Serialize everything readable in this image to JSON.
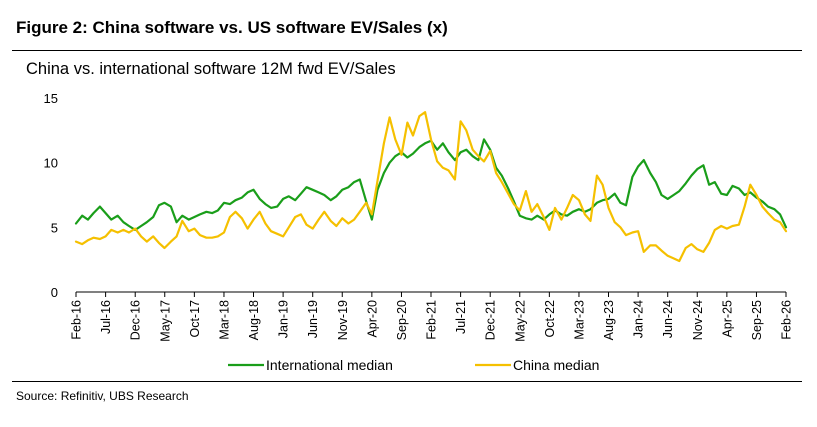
{
  "figure_title": "Figure 2: China software vs. US software EV/Sales (x)",
  "source": "Source: Refinitiv, UBS Research",
  "chart_data": {
    "type": "line",
    "title": "China vs. international software 12M fwd EV/Sales",
    "xlabel": "",
    "ylabel": "",
    "ylim": [
      0,
      15
    ],
    "yticks": [
      0,
      5,
      10,
      15
    ],
    "xlim": [
      2016.083,
      2026.083
    ],
    "xticks": [
      {
        "label": "Feb-16",
        "x": 2016.083
      },
      {
        "label": "Jul-16",
        "x": 2016.5
      },
      {
        "label": "Dec-16",
        "x": 2016.917
      },
      {
        "label": "May-17",
        "x": 2017.333
      },
      {
        "label": "Oct-17",
        "x": 2017.75
      },
      {
        "label": "Mar-18",
        "x": 2018.167
      },
      {
        "label": "Aug-18",
        "x": 2018.583
      },
      {
        "label": "Jan-19",
        "x": 2019.0
      },
      {
        "label": "Jun-19",
        "x": 2019.417
      },
      {
        "label": "Nov-19",
        "x": 2019.833
      },
      {
        "label": "Apr-20",
        "x": 2020.25
      },
      {
        "label": "Sep-20",
        "x": 2020.667
      },
      {
        "label": "Feb-21",
        "x": 2021.083
      },
      {
        "label": "Jul-21",
        "x": 2021.5
      },
      {
        "label": "Dec-21",
        "x": 2021.917
      },
      {
        "label": "May-22",
        "x": 2022.333
      },
      {
        "label": "Oct-22",
        "x": 2022.75
      },
      {
        "label": "Mar-23",
        "x": 2023.167
      },
      {
        "label": "Aug-23",
        "x": 2023.583
      },
      {
        "label": "Jan-24",
        "x": 2024.0
      },
      {
        "label": "Jun-24",
        "x": 2024.417
      },
      {
        "label": "Nov-24",
        "x": 2024.833
      },
      {
        "label": "Apr-25",
        "x": 2025.25
      },
      {
        "label": "Sep-25",
        "x": 2025.667
      },
      {
        "label": "Feb-26",
        "x": 2026.083
      }
    ],
    "legend_position": "bottom",
    "series": [
      {
        "name": "International median",
        "color": "#1a9e1a",
        "points": [
          [
            2016.083,
            5.3
          ],
          [
            2016.17,
            5.9
          ],
          [
            2016.25,
            5.6
          ],
          [
            2016.33,
            6.1
          ],
          [
            2016.42,
            6.6
          ],
          [
            2016.5,
            6.1
          ],
          [
            2016.58,
            5.6
          ],
          [
            2016.67,
            5.9
          ],
          [
            2016.75,
            5.4
          ],
          [
            2016.83,
            5.1
          ],
          [
            2016.917,
            4.8
          ],
          [
            2017.0,
            5.1
          ],
          [
            2017.08,
            5.4
          ],
          [
            2017.17,
            5.8
          ],
          [
            2017.25,
            6.7
          ],
          [
            2017.33,
            6.9
          ],
          [
            2017.42,
            6.6
          ],
          [
            2017.5,
            5.4
          ],
          [
            2017.58,
            5.9
          ],
          [
            2017.67,
            5.6
          ],
          [
            2017.75,
            5.8
          ],
          [
            2017.83,
            6.0
          ],
          [
            2017.92,
            6.2
          ],
          [
            2018.0,
            6.1
          ],
          [
            2018.08,
            6.3
          ],
          [
            2018.167,
            6.9
          ],
          [
            2018.25,
            6.8
          ],
          [
            2018.33,
            7.1
          ],
          [
            2018.42,
            7.3
          ],
          [
            2018.5,
            7.7
          ],
          [
            2018.583,
            7.9
          ],
          [
            2018.67,
            7.2
          ],
          [
            2018.75,
            6.8
          ],
          [
            2018.83,
            6.5
          ],
          [
            2018.917,
            6.6
          ],
          [
            2019.0,
            7.2
          ],
          [
            2019.08,
            7.4
          ],
          [
            2019.17,
            7.1
          ],
          [
            2019.25,
            7.6
          ],
          [
            2019.33,
            8.1
          ],
          [
            2019.417,
            7.9
          ],
          [
            2019.5,
            7.7
          ],
          [
            2019.58,
            7.5
          ],
          [
            2019.67,
            7.1
          ],
          [
            2019.75,
            7.4
          ],
          [
            2019.833,
            7.9
          ],
          [
            2019.92,
            8.1
          ],
          [
            2020.0,
            8.5
          ],
          [
            2020.08,
            8.7
          ],
          [
            2020.17,
            7.0
          ],
          [
            2020.25,
            5.6
          ],
          [
            2020.33,
            7.9
          ],
          [
            2020.42,
            9.2
          ],
          [
            2020.5,
            10.0
          ],
          [
            2020.58,
            10.5
          ],
          [
            2020.667,
            10.8
          ],
          [
            2020.75,
            10.4
          ],
          [
            2020.83,
            10.7
          ],
          [
            2020.92,
            11.2
          ],
          [
            2021.0,
            11.5
          ],
          [
            2021.083,
            11.7
          ],
          [
            2021.17,
            11.0
          ],
          [
            2021.25,
            11.5
          ],
          [
            2021.33,
            10.8
          ],
          [
            2021.42,
            10.2
          ],
          [
            2021.5,
            10.8
          ],
          [
            2021.58,
            11.0
          ],
          [
            2021.67,
            10.5
          ],
          [
            2021.75,
            10.2
          ],
          [
            2021.83,
            11.8
          ],
          [
            2021.917,
            11.0
          ],
          [
            2022.0,
            9.6
          ],
          [
            2022.08,
            9.0
          ],
          [
            2022.17,
            8.0
          ],
          [
            2022.25,
            7.0
          ],
          [
            2022.333,
            5.9
          ],
          [
            2022.42,
            5.7
          ],
          [
            2022.5,
            5.6
          ],
          [
            2022.58,
            5.9
          ],
          [
            2022.67,
            5.6
          ],
          [
            2022.75,
            6.0
          ],
          [
            2022.83,
            6.3
          ],
          [
            2022.92,
            6.0
          ],
          [
            2023.0,
            5.9
          ],
          [
            2023.08,
            6.2
          ],
          [
            2023.167,
            6.4
          ],
          [
            2023.25,
            6.2
          ],
          [
            2023.33,
            6.4
          ],
          [
            2023.42,
            6.9
          ],
          [
            2023.5,
            7.1
          ],
          [
            2023.583,
            7.2
          ],
          [
            2023.67,
            7.6
          ],
          [
            2023.75,
            6.9
          ],
          [
            2023.83,
            6.7
          ],
          [
            2023.92,
            8.9
          ],
          [
            2024.0,
            9.7
          ],
          [
            2024.08,
            10.2
          ],
          [
            2024.17,
            9.2
          ],
          [
            2024.25,
            8.5
          ],
          [
            2024.33,
            7.5
          ],
          [
            2024.417,
            7.2
          ],
          [
            2024.5,
            7.5
          ],
          [
            2024.58,
            7.8
          ],
          [
            2024.67,
            8.4
          ],
          [
            2024.75,
            9.0
          ],
          [
            2024.833,
            9.5
          ],
          [
            2024.92,
            9.8
          ],
          [
            2025.0,
            8.3
          ],
          [
            2025.08,
            8.5
          ],
          [
            2025.17,
            7.6
          ],
          [
            2025.25,
            7.5
          ],
          [
            2025.33,
            8.2
          ],
          [
            2025.42,
            8.0
          ],
          [
            2025.5,
            7.5
          ],
          [
            2025.58,
            7.7
          ],
          [
            2025.667,
            7.3
          ],
          [
            2025.75,
            7.0
          ],
          [
            2025.83,
            6.6
          ],
          [
            2025.92,
            6.4
          ],
          [
            2026.0,
            6.0
          ],
          [
            2026.083,
            5.0
          ]
        ]
      },
      {
        "name": "China median",
        "color": "#f5c000",
        "points": [
          [
            2016.083,
            3.9
          ],
          [
            2016.17,
            3.7
          ],
          [
            2016.25,
            4.0
          ],
          [
            2016.33,
            4.2
          ],
          [
            2016.42,
            4.1
          ],
          [
            2016.5,
            4.3
          ],
          [
            2016.58,
            4.8
          ],
          [
            2016.67,
            4.6
          ],
          [
            2016.75,
            4.8
          ],
          [
            2016.83,
            4.6
          ],
          [
            2016.917,
            4.9
          ],
          [
            2017.0,
            4.3
          ],
          [
            2017.08,
            3.9
          ],
          [
            2017.17,
            4.3
          ],
          [
            2017.25,
            3.8
          ],
          [
            2017.33,
            3.4
          ],
          [
            2017.42,
            3.9
          ],
          [
            2017.5,
            4.3
          ],
          [
            2017.58,
            5.5
          ],
          [
            2017.67,
            4.7
          ],
          [
            2017.75,
            4.9
          ],
          [
            2017.83,
            4.4
          ],
          [
            2017.92,
            4.2
          ],
          [
            2018.0,
            4.2
          ],
          [
            2018.08,
            4.3
          ],
          [
            2018.167,
            4.6
          ],
          [
            2018.25,
            5.8
          ],
          [
            2018.33,
            6.2
          ],
          [
            2018.42,
            5.7
          ],
          [
            2018.5,
            4.9
          ],
          [
            2018.583,
            5.6
          ],
          [
            2018.67,
            6.2
          ],
          [
            2018.75,
            5.3
          ],
          [
            2018.83,
            4.7
          ],
          [
            2018.917,
            4.5
          ],
          [
            2019.0,
            4.3
          ],
          [
            2019.08,
            5.0
          ],
          [
            2019.17,
            5.8
          ],
          [
            2019.25,
            6.0
          ],
          [
            2019.33,
            5.2
          ],
          [
            2019.417,
            4.9
          ],
          [
            2019.5,
            5.6
          ],
          [
            2019.58,
            6.2
          ],
          [
            2019.67,
            5.5
          ],
          [
            2019.75,
            5.1
          ],
          [
            2019.833,
            5.7
          ],
          [
            2019.92,
            5.3
          ],
          [
            2020.0,
            5.6
          ],
          [
            2020.08,
            6.2
          ],
          [
            2020.17,
            6.9
          ],
          [
            2020.25,
            6.0
          ],
          [
            2020.33,
            8.6
          ],
          [
            2020.42,
            11.5
          ],
          [
            2020.5,
            13.5
          ],
          [
            2020.58,
            11.8
          ],
          [
            2020.667,
            10.6
          ],
          [
            2020.75,
            13.1
          ],
          [
            2020.83,
            12.1
          ],
          [
            2020.92,
            13.6
          ],
          [
            2021.0,
            13.9
          ],
          [
            2021.083,
            11.8
          ],
          [
            2021.17,
            10.1
          ],
          [
            2021.25,
            9.6
          ],
          [
            2021.33,
            9.4
          ],
          [
            2021.42,
            8.7
          ],
          [
            2021.5,
            13.2
          ],
          [
            2021.58,
            12.5
          ],
          [
            2021.67,
            11.0
          ],
          [
            2021.75,
            10.5
          ],
          [
            2021.83,
            10.1
          ],
          [
            2021.917,
            10.9
          ],
          [
            2022.0,
            9.2
          ],
          [
            2022.08,
            8.5
          ],
          [
            2022.17,
            7.6
          ],
          [
            2022.25,
            6.8
          ],
          [
            2022.333,
            6.3
          ],
          [
            2022.42,
            7.8
          ],
          [
            2022.5,
            6.2
          ],
          [
            2022.58,
            6.8
          ],
          [
            2022.67,
            5.8
          ],
          [
            2022.75,
            4.8
          ],
          [
            2022.83,
            6.5
          ],
          [
            2022.92,
            5.6
          ],
          [
            2023.0,
            6.5
          ],
          [
            2023.08,
            7.5
          ],
          [
            2023.167,
            7.1
          ],
          [
            2023.25,
            6.0
          ],
          [
            2023.33,
            5.5
          ],
          [
            2023.42,
            9.0
          ],
          [
            2023.5,
            8.3
          ],
          [
            2023.583,
            6.5
          ],
          [
            2023.67,
            5.4
          ],
          [
            2023.75,
            5.0
          ],
          [
            2023.83,
            4.4
          ],
          [
            2023.92,
            4.6
          ],
          [
            2024.0,
            4.7
          ],
          [
            2024.08,
            3.1
          ],
          [
            2024.17,
            3.6
          ],
          [
            2024.25,
            3.6
          ],
          [
            2024.33,
            3.2
          ],
          [
            2024.417,
            2.8
          ],
          [
            2024.5,
            2.6
          ],
          [
            2024.58,
            2.4
          ],
          [
            2024.67,
            3.4
          ],
          [
            2024.75,
            3.7
          ],
          [
            2024.833,
            3.3
          ],
          [
            2024.92,
            3.1
          ],
          [
            2025.0,
            3.8
          ],
          [
            2025.08,
            4.8
          ],
          [
            2025.17,
            5.1
          ],
          [
            2025.25,
            4.9
          ],
          [
            2025.33,
            5.1
          ],
          [
            2025.42,
            5.2
          ],
          [
            2025.5,
            6.6
          ],
          [
            2025.58,
            8.3
          ],
          [
            2025.667,
            7.5
          ],
          [
            2025.75,
            6.6
          ],
          [
            2025.83,
            6.1
          ],
          [
            2025.92,
            5.6
          ],
          [
            2026.0,
            5.4
          ],
          [
            2026.083,
            4.7
          ]
        ]
      }
    ]
  }
}
